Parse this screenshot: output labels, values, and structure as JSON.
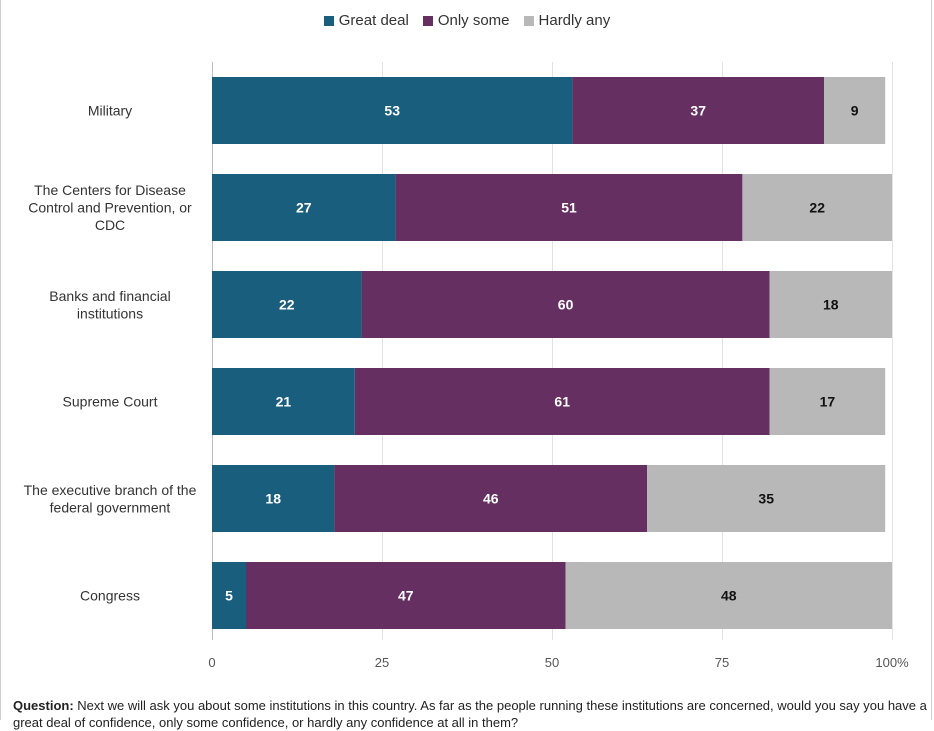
{
  "chart_data": {
    "type": "bar",
    "orientation": "horizontal",
    "stacked": true,
    "categories": [
      "Military",
      "The Centers for Disease Control and Prevention, or CDC",
      "Banks and financial institutions",
      "Supreme Court",
      "The executive branch of the federal government",
      "Congress"
    ],
    "category_lines": [
      [
        "Military"
      ],
      [
        "The Centers for Disease",
        "Control and Prevention, or",
        "CDC"
      ],
      [
        "Banks and financial",
        "institutions"
      ],
      [
        "Supreme Court"
      ],
      [
        "The executive branch of the",
        "federal government"
      ],
      [
        "Congress"
      ]
    ],
    "series": [
      {
        "name": "Great deal",
        "color": "#1a5e7e",
        "values": [
          53,
          27,
          22,
          21,
          18,
          5
        ]
      },
      {
        "name": "Only some",
        "color": "#662f62",
        "values": [
          37,
          51,
          60,
          61,
          46,
          47
        ]
      },
      {
        "name": "Hardly any",
        "color": "#b8b8b8",
        "values": [
          9,
          22,
          18,
          17,
          35,
          48
        ]
      }
    ],
    "xlim": [
      0,
      100
    ],
    "xticks": [
      "0",
      "25",
      "50",
      "75",
      "100%"
    ],
    "xtick_values": [
      0,
      25,
      50,
      75,
      100
    ],
    "grid": true,
    "legend_position": "top-center"
  },
  "footnote": {
    "label": "Question:",
    "text": "Next we will ask you about some institutions in this country. As far as the people running these institutions are concerned, would you say you have a great deal of confidence, only some confidence, or hardly any confidence at all in them?"
  }
}
